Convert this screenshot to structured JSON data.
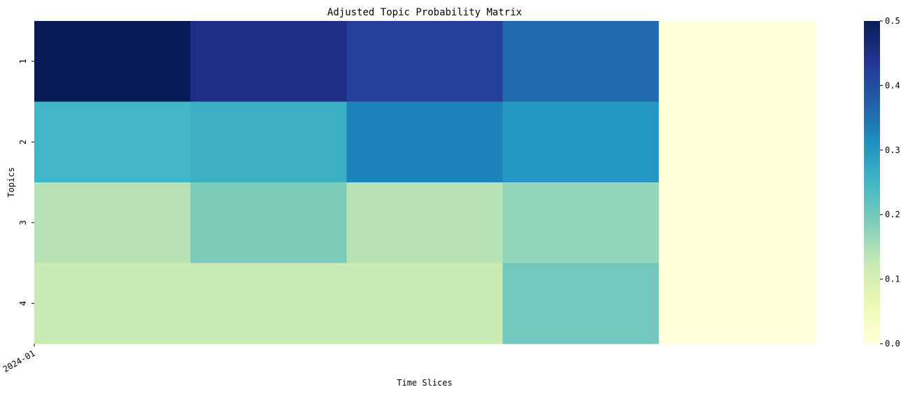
{
  "chart_data": {
    "type": "heatmap",
    "title": "Adjusted Topic Probability Matrix",
    "xlabel": "Time Slices",
    "ylabel": "Topics",
    "x_tick_labels": [
      "2024-01"
    ],
    "y_tick_labels": [
      "1",
      "2",
      "3",
      "4"
    ],
    "rows": [
      "1",
      "2",
      "3",
      "4"
    ],
    "columns_count": 5,
    "values": [
      [
        0.5,
        0.45,
        0.42,
        0.36,
        0.0
      ],
      [
        0.25,
        0.26,
        0.33,
        0.3,
        0.0
      ],
      [
        0.14,
        0.19,
        0.14,
        0.17,
        0.0
      ],
      [
        0.12,
        0.12,
        0.12,
        0.2,
        0.0
      ]
    ],
    "colormap": "YlGnBu",
    "colorbar": {
      "range": [
        0.0,
        0.5
      ],
      "ticks": [
        "0.0",
        "0.1",
        "0.2",
        "0.3",
        "0.4",
        "0.5"
      ]
    }
  }
}
